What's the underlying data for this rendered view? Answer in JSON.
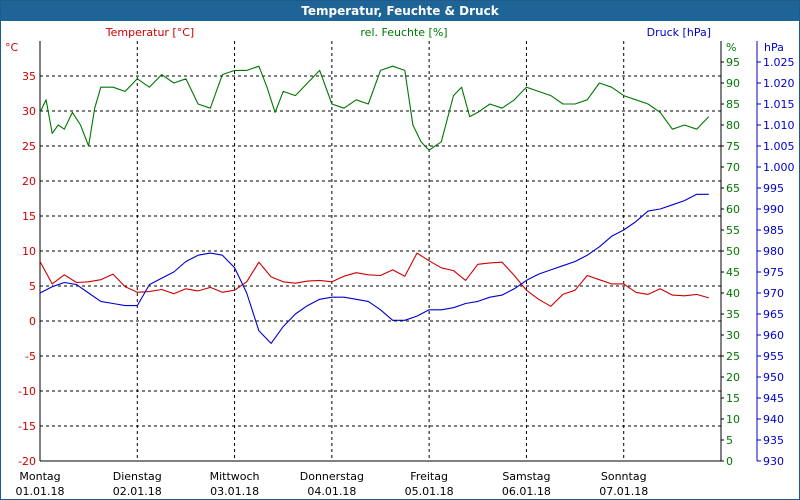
{
  "window": {
    "title": "Temperatur, Feuchte & Druck"
  },
  "colors": {
    "temperature": "#cc0000",
    "humidity": "#007700",
    "pressure": "#0000cc",
    "titlebar": "#1f6496",
    "grid": "#000000"
  },
  "chart_data": {
    "type": "line",
    "title": "Temperatur, Feuchte & Druck",
    "grid": true,
    "x": {
      "range": [
        "01.01.18 00:00",
        "08.01.18 00:00"
      ],
      "ticks": [
        {
          "day": "Montag",
          "date": "01.01.18"
        },
        {
          "day": "Dienstag",
          "date": "02.01.18"
        },
        {
          "day": "Mittwoch",
          "date": "03.01.18"
        },
        {
          "day": "Donnerstag",
          "date": "04.01.18"
        },
        {
          "day": "Freitag",
          "date": "05.01.18"
        },
        {
          "day": "Samstag",
          "date": "06.01.18"
        },
        {
          "day": "Sonntag",
          "date": "07.01.18"
        }
      ]
    },
    "axes": {
      "temperature": {
        "label": "Temperatur [°C]",
        "unit": "°C",
        "ylim": [
          -20,
          40
        ],
        "ticks": [
          "35",
          "30",
          "25",
          "20",
          "15",
          "10",
          "5",
          "0",
          "-5",
          "-10",
          "-15",
          "-20"
        ]
      },
      "humidity": {
        "label": "rel. Feuchte [%]",
        "unit": "%",
        "ylim": [
          0,
          100
        ],
        "ticks": [
          "95",
          "90",
          "85",
          "80",
          "75",
          "70",
          "65",
          "60",
          "55",
          "50",
          "45",
          "40",
          "35",
          "30",
          "25",
          "20",
          "15",
          "10",
          "5",
          "0"
        ]
      },
      "pressure": {
        "label": "Druck [hPa]",
        "unit": "hPa",
        "ylim": [
          930,
          1030
        ],
        "ticks": [
          "1.025",
          "1.020",
          "1.015",
          "1.010",
          "1.005",
          "1.000",
          "995",
          "990",
          "985",
          "980",
          "975",
          "970",
          "965",
          "960",
          "955",
          "950",
          "945",
          "940",
          "935",
          "930"
        ]
      }
    },
    "series": [
      {
        "name": "Temperatur [°C]",
        "axis": "temperature",
        "points": [
          [
            "01.01.18 00:00",
            8.5
          ],
          [
            "01.01.18 03:00",
            5.3
          ],
          [
            "01.01.18 06:00",
            6.6
          ],
          [
            "01.01.18 09:00",
            5.5
          ],
          [
            "01.01.18 12:00",
            5.6
          ],
          [
            "01.01.18 15:00",
            5.9
          ],
          [
            "01.01.18 18:00",
            6.7
          ],
          [
            "01.01.18 21:00",
            4.9
          ],
          [
            "02.01.18 00:00",
            4.1
          ],
          [
            "02.01.18 03:00",
            4.2
          ],
          [
            "02.01.18 06:00",
            4.5
          ],
          [
            "02.01.18 09:00",
            3.9
          ],
          [
            "02.01.18 12:00",
            4.6
          ],
          [
            "02.01.18 15:00",
            4.3
          ],
          [
            "02.01.18 18:00",
            4.8
          ],
          [
            "02.01.18 21:00",
            4.1
          ],
          [
            "03.01.18 00:00",
            4.4
          ],
          [
            "03.01.18 03:00",
            5.6
          ],
          [
            "03.01.18 06:00",
            8.4
          ],
          [
            "03.01.18 09:00",
            6.3
          ],
          [
            "03.01.18 12:00",
            5.6
          ],
          [
            "03.01.18 15:00",
            5.4
          ],
          [
            "03.01.18 18:00",
            5.7
          ],
          [
            "03.01.18 21:00",
            5.8
          ],
          [
            "04.01.18 00:00",
            5.6
          ],
          [
            "04.01.18 03:00",
            6.4
          ],
          [
            "04.01.18 06:00",
            6.9
          ],
          [
            "04.01.18 09:00",
            6.6
          ],
          [
            "04.01.18 12:00",
            6.5
          ],
          [
            "04.01.18 15:00",
            7.3
          ],
          [
            "04.01.18 18:00",
            6.4
          ],
          [
            "04.01.18 21:00",
            9.7
          ],
          [
            "05.01.18 00:00",
            8.6
          ],
          [
            "05.01.18 03:00",
            7.6
          ],
          [
            "05.01.18 06:00",
            7.2
          ],
          [
            "05.01.18 09:00",
            5.8
          ],
          [
            "05.01.18 12:00",
            8.1
          ],
          [
            "05.01.18 15:00",
            8.3
          ],
          [
            "05.01.18 18:00",
            8.4
          ],
          [
            "05.01.18 21:00",
            6.5
          ],
          [
            "06.01.18 00:00",
            4.4
          ],
          [
            "06.01.18 03:00",
            3.1
          ],
          [
            "06.01.18 06:00",
            2.1
          ],
          [
            "06.01.18 09:00",
            3.8
          ],
          [
            "06.01.18 12:00",
            4.4
          ],
          [
            "06.01.18 15:00",
            6.5
          ],
          [
            "06.01.18 18:00",
            5.9
          ],
          [
            "06.01.18 21:00",
            5.3
          ],
          [
            "07.01.18 00:00",
            5.3
          ],
          [
            "07.01.18 03:00",
            4.1
          ],
          [
            "07.01.18 06:00",
            3.8
          ],
          [
            "07.01.18 09:00",
            4.6
          ],
          [
            "07.01.18 12:00",
            3.7
          ],
          [
            "07.01.18 15:00",
            3.6
          ],
          [
            "07.01.18 18:00",
            3.8
          ],
          [
            "07.01.18 21:00",
            3.3
          ]
        ]
      },
      {
        "name": "rel. Feuchte [%]",
        "axis": "humidity",
        "points": [
          [
            "01.01.18 00:00",
            83
          ],
          [
            "01.01.18 01:30",
            86
          ],
          [
            "01.01.18 03:00",
            78
          ],
          [
            "01.01.18 04:30",
            80
          ],
          [
            "01.01.18 06:00",
            79
          ],
          [
            "01.01.18 08:00",
            83
          ],
          [
            "01.01.18 10:00",
            80
          ],
          [
            "01.01.18 12:00",
            75
          ],
          [
            "01.01.18 13:30",
            84
          ],
          [
            "01.01.18 15:00",
            89
          ],
          [
            "01.01.18 18:00",
            89
          ],
          [
            "01.01.18 21:00",
            88
          ],
          [
            "02.01.18 00:00",
            91
          ],
          [
            "02.01.18 03:00",
            89
          ],
          [
            "02.01.18 06:00",
            92
          ],
          [
            "02.01.18 09:00",
            90
          ],
          [
            "02.01.18 12:00",
            91
          ],
          [
            "02.01.18 15:00",
            85
          ],
          [
            "02.01.18 18:00",
            84
          ],
          [
            "02.01.18 21:00",
            92
          ],
          [
            "03.01.18 00:00",
            93
          ],
          [
            "03.01.18 03:00",
            93
          ],
          [
            "03.01.18 06:00",
            94
          ],
          [
            "03.01.18 08:00",
            89
          ],
          [
            "03.01.18 10:00",
            83
          ],
          [
            "03.01.18 12:00",
            88
          ],
          [
            "03.01.18 15:00",
            87
          ],
          [
            "03.01.18 18:00",
            90
          ],
          [
            "03.01.18 21:00",
            93
          ],
          [
            "04.01.18 00:00",
            85
          ],
          [
            "04.01.18 03:00",
            84
          ],
          [
            "04.01.18 06:00",
            86
          ],
          [
            "04.01.18 09:00",
            85
          ],
          [
            "04.01.18 12:00",
            93
          ],
          [
            "04.01.18 15:00",
            94
          ],
          [
            "04.01.18 18:00",
            93
          ],
          [
            "04.01.18 20:00",
            80
          ],
          [
            "04.01.18 22:00",
            76
          ],
          [
            "05.01.18 00:00",
            74
          ],
          [
            "05.01.18 03:00",
            76
          ],
          [
            "05.01.18 06:00",
            87
          ],
          [
            "05.01.18 08:00",
            89
          ],
          [
            "05.01.18 10:00",
            82
          ],
          [
            "05.01.18 12:00",
            83
          ],
          [
            "05.01.18 15:00",
            85
          ],
          [
            "05.01.18 18:00",
            84
          ],
          [
            "05.01.18 21:00",
            86
          ],
          [
            "06.01.18 00:00",
            89
          ],
          [
            "06.01.18 03:00",
            88
          ],
          [
            "06.01.18 06:00",
            87
          ],
          [
            "06.01.18 09:00",
            85
          ],
          [
            "06.01.18 12:00",
            85
          ],
          [
            "06.01.18 15:00",
            86
          ],
          [
            "06.01.18 18:00",
            90
          ],
          [
            "06.01.18 21:00",
            89
          ],
          [
            "07.01.18 00:00",
            87
          ],
          [
            "07.01.18 03:00",
            86
          ],
          [
            "07.01.18 06:00",
            85
          ],
          [
            "07.01.18 09:00",
            83
          ],
          [
            "07.01.18 12:00",
            79
          ],
          [
            "07.01.18 15:00",
            80
          ],
          [
            "07.01.18 18:00",
            79
          ],
          [
            "07.01.18 21:00",
            82
          ]
        ]
      },
      {
        "name": "Druck [hPa]",
        "axis": "pressure",
        "points": [
          [
            "01.01.18 00:00",
            970
          ],
          [
            "01.01.18 03:00",
            971.5
          ],
          [
            "01.01.18 06:00",
            972.5
          ],
          [
            "01.01.18 09:00",
            972
          ],
          [
            "01.01.18 12:00",
            970
          ],
          [
            "01.01.18 15:00",
            968
          ],
          [
            "01.01.18 18:00",
            967.5
          ],
          [
            "01.01.18 21:00",
            967
          ],
          [
            "02.01.18 00:00",
            967
          ],
          [
            "02.01.18 03:00",
            972
          ],
          [
            "02.01.18 06:00",
            973.5
          ],
          [
            "02.01.18 09:00",
            975
          ],
          [
            "02.01.18 12:00",
            977.5
          ],
          [
            "02.01.18 15:00",
            979
          ],
          [
            "02.01.18 18:00",
            979.5
          ],
          [
            "02.01.18 21:00",
            979
          ],
          [
            "03.01.18 00:00",
            976
          ],
          [
            "03.01.18 03:00",
            970
          ],
          [
            "03.01.18 06:00",
            961
          ],
          [
            "03.01.18 09:00",
            958
          ],
          [
            "03.01.18 12:00",
            962
          ],
          [
            "03.01.18 15:00",
            965
          ],
          [
            "03.01.18 18:00",
            967
          ],
          [
            "03.01.18 21:00",
            968.5
          ],
          [
            "04.01.18 00:00",
            969
          ],
          [
            "04.01.18 03:00",
            969
          ],
          [
            "04.01.18 06:00",
            968.5
          ],
          [
            "04.01.18 09:00",
            968
          ],
          [
            "04.01.18 12:00",
            966
          ],
          [
            "04.01.18 15:00",
            963.5
          ],
          [
            "04.01.18 18:00",
            963.5
          ],
          [
            "04.01.18 21:00",
            964.5
          ],
          [
            "05.01.18 00:00",
            966
          ],
          [
            "05.01.18 03:00",
            966
          ],
          [
            "05.01.18 06:00",
            966.5
          ],
          [
            "05.01.18 09:00",
            967.5
          ],
          [
            "05.01.18 12:00",
            968
          ],
          [
            "05.01.18 15:00",
            969
          ],
          [
            "05.01.18 18:00",
            969.5
          ],
          [
            "05.01.18 21:00",
            971
          ],
          [
            "06.01.18 00:00",
            973
          ],
          [
            "06.01.18 03:00",
            974.5
          ],
          [
            "06.01.18 06:00",
            975.5
          ],
          [
            "06.01.18 09:00",
            976.5
          ],
          [
            "06.01.18 12:00",
            977.5
          ],
          [
            "06.01.18 15:00",
            979
          ],
          [
            "06.01.18 18:00",
            981
          ],
          [
            "06.01.18 21:00",
            983.5
          ],
          [
            "07.01.18 00:00",
            985
          ],
          [
            "07.01.18 03:00",
            987
          ],
          [
            "07.01.18 06:00",
            989.5
          ],
          [
            "07.01.18 09:00",
            990
          ],
          [
            "07.01.18 12:00",
            991
          ],
          [
            "07.01.18 15:00",
            992
          ],
          [
            "07.01.18 18:00",
            993.5
          ],
          [
            "07.01.18 21:00",
            993.5
          ]
        ]
      }
    ]
  }
}
